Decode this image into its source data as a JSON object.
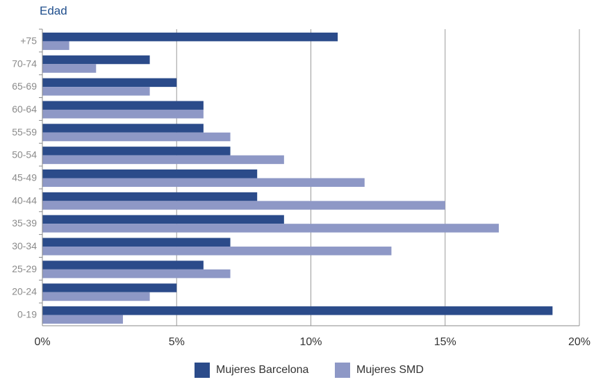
{
  "chart_data": {
    "type": "bar",
    "orientation": "horizontal",
    "title": "Edad",
    "categories": [
      "+75",
      "70-74",
      "65-69",
      "60-64",
      "55-59",
      "50-54",
      "45-49",
      "40-44",
      "35-39",
      "30-34",
      "25-29",
      "20-24",
      "0-19"
    ],
    "series": [
      {
        "name": "Mujeres Barcelona",
        "color": "#2b4b8a",
        "values": [
          11,
          4,
          5,
          6,
          6,
          7,
          8,
          8,
          9,
          7,
          6,
          5,
          19
        ]
      },
      {
        "name": "Mujeres SMD",
        "color": "#8e98c6",
        "values": [
          1,
          2,
          4,
          6,
          7,
          9,
          12,
          15,
          17,
          13,
          7,
          4,
          3
        ]
      }
    ],
    "xlim": [
      0,
      20
    ],
    "xticks": [
      0,
      5,
      10,
      15,
      20
    ],
    "xtick_labels": [
      "0%",
      "5%",
      "10%",
      "15%",
      "20%"
    ],
    "grid": "vertical",
    "legend_position": "bottom-center"
  }
}
